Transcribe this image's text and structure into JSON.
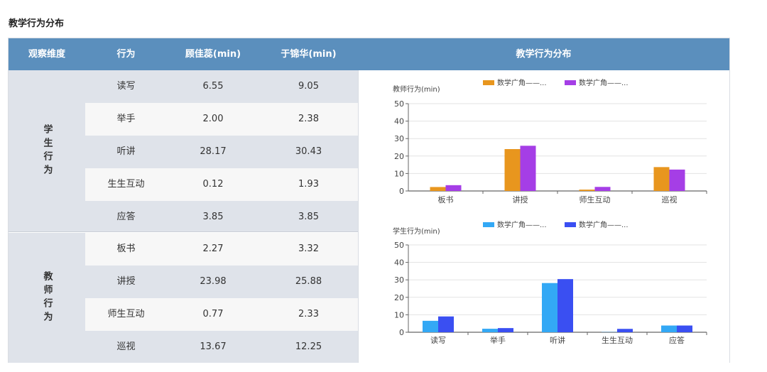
{
  "page_title": "教学行为分布",
  "table": {
    "headers": {
      "dimension": "观察维度",
      "behavior": "行为",
      "teacher1": "顾佳蕊(min)",
      "teacher2": "于锦华(min)",
      "chart": "教学行为分布"
    },
    "groups": [
      {
        "label": "学生行为",
        "rows": [
          {
            "behavior": "读写",
            "v1": "6.55",
            "v2": "9.05"
          },
          {
            "behavior": "举手",
            "v1": "2.00",
            "v2": "2.38"
          },
          {
            "behavior": "听讲",
            "v1": "28.17",
            "v2": "30.43"
          },
          {
            "behavior": "生生互动",
            "v1": "0.12",
            "v2": "1.93"
          },
          {
            "behavior": "应答",
            "v1": "3.85",
            "v2": "3.85"
          }
        ]
      },
      {
        "label": "教师行为",
        "rows": [
          {
            "behavior": "板书",
            "v1": "2.27",
            "v2": "3.32"
          },
          {
            "behavior": "讲授",
            "v1": "23.98",
            "v2": "25.88"
          },
          {
            "behavior": "师生互动",
            "v1": "0.77",
            "v2": "2.33"
          },
          {
            "behavior": "巡视",
            "v1": "13.67",
            "v2": "12.25"
          }
        ]
      }
    ]
  },
  "chart_data": [
    {
      "type": "bar",
      "title": "",
      "ylabel": "教师行为(min)",
      "categories": [
        "板书",
        "讲授",
        "师生互动",
        "巡视"
      ],
      "ylim": [
        0,
        50
      ],
      "yticks": [
        0,
        10,
        20,
        30,
        40,
        50
      ],
      "legend_position": "top",
      "series": [
        {
          "name": "数学广角——...",
          "color": "#e8961e",
          "values": [
            2.27,
            23.98,
            0.77,
            13.67
          ]
        },
        {
          "name": "数学广角——...",
          "color": "#a53ee6",
          "values": [
            3.32,
            25.88,
            2.33,
            12.25
          ]
        }
      ]
    },
    {
      "type": "bar",
      "title": "",
      "ylabel": "学生行为(min)",
      "categories": [
        "读写",
        "举手",
        "听讲",
        "生生互动",
        "应答"
      ],
      "ylim": [
        0,
        50
      ],
      "yticks": [
        0,
        10,
        20,
        30,
        40,
        50
      ],
      "legend_position": "top",
      "series": [
        {
          "name": "数学广角——...",
          "color": "#33a8f5",
          "values": [
            6.55,
            2.0,
            28.17,
            0.12,
            3.85
          ]
        },
        {
          "name": "数学广角——...",
          "color": "#3a4ff2",
          "values": [
            9.05,
            2.38,
            30.43,
            1.93,
            3.85
          ]
        }
      ]
    }
  ]
}
